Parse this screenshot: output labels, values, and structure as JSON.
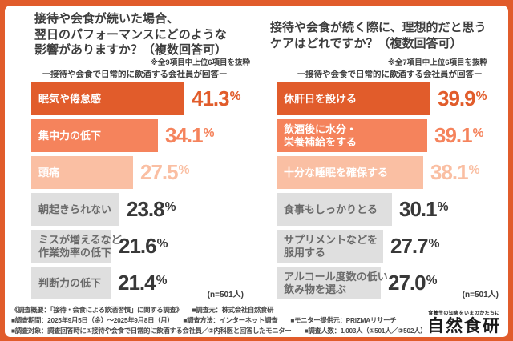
{
  "colors": {
    "frame_orange": "#E15C2B",
    "bar_dark": "#E15C2B",
    "bar_mid": "#F5835C",
    "bar_light": "#FABFA3",
    "bar_gray": "#DFDFDF",
    "text_dark": "#3D3D3D",
    "footer_text": "#4A4A4A"
  },
  "charts": [
    {
      "title": "接待や会食が続いた場合、\n翌日のパフォーマンスにどのような\n影響がありますか？（複数回答可）",
      "note": "※全9項目中上位6項目を抜粋",
      "subtitle": "ー接待や会食で日常的に飲酒する会社員が回答ー",
      "sample": "(n=501人)",
      "rows": [
        {
          "label": "眠気や倦怠感",
          "value": 41.3,
          "display": "41.3%",
          "tier": "dark"
        },
        {
          "label": "集中力の低下",
          "value": 34.1,
          "display": "34.1%",
          "tier": "mid"
        },
        {
          "label": "頭痛",
          "value": 27.5,
          "display": "27.5%",
          "tier": "light"
        },
        {
          "label": "朝起きられない",
          "value": 23.8,
          "display": "23.8%",
          "tier": "gray"
        },
        {
          "label": "ミスが増えるなど\n作業効率の低下",
          "value": 21.6,
          "display": "21.6%",
          "tier": "gray"
        },
        {
          "label": "判断力の低下",
          "value": 21.4,
          "display": "21.4%",
          "tier": "gray"
        }
      ]
    },
    {
      "title": "接待や会食が続く際に、理想的だと思う\nケアはどれですか？（複数回答可）",
      "note": "※全7項目中上位6項目を抜粋",
      "subtitle": "ー接待や会食で日常的に飲酒する会社員が回答ー",
      "sample": "(n=501人)",
      "rows": [
        {
          "label": "休肝日を設ける",
          "value": 39.9,
          "display": "39.9%",
          "tier": "dark"
        },
        {
          "label": "飲酒後に水分・\n栄養補給をする",
          "value": 39.1,
          "display": "39.1%",
          "tier": "mid"
        },
        {
          "label": "十分な睡眠を確保する",
          "value": 38.1,
          "display": "38.1%",
          "tier": "light"
        },
        {
          "label": "食事もしっかりとる",
          "value": 30.1,
          "display": "30.1%",
          "tier": "gray"
        },
        {
          "label": "サプリメントなどを\n服用する",
          "value": 27.7,
          "display": "27.7%",
          "tier": "gray"
        },
        {
          "label": "アルコール度数の低い\n飲み物を選ぶ",
          "value": 27.0,
          "display": "27.0%",
          "tier": "gray"
        }
      ]
    }
  ],
  "chart_data": [
    {
      "type": "bar",
      "orientation": "horizontal",
      "title": "接待や会食が続いた場合、翌日のパフォーマンスにどのような影響がありますか？（複数回答可）",
      "note": "※全9項目中上位6項目を抜粋",
      "subtitle": "ー接待や会食で日常的に飲酒する会社員が回答ー",
      "sample_size_label": "(n=501人)",
      "categories": [
        "眠気や倦怠感",
        "集中力の低下",
        "頭痛",
        "朝起きられない",
        "ミスが増えるなど作業効率の低下",
        "判断力の低下"
      ],
      "values": [
        41.3,
        34.1,
        27.5,
        23.8,
        21.6,
        21.4
      ],
      "unit": "%",
      "xlim": [
        0,
        45
      ],
      "grid": false,
      "bar_colors": [
        "#E15C2B",
        "#F5835C",
        "#FABFA3",
        "#DFDFDF",
        "#DFDFDF",
        "#DFDFDF"
      ]
    },
    {
      "type": "bar",
      "orientation": "horizontal",
      "title": "接待や会食が続く際に、理想的だと思うケアはどれですか？（複数回答可）",
      "note": "※全7項目中上位6項目を抜粋",
      "subtitle": "ー接待や会食で日常的に飲酒する会社員が回答ー",
      "sample_size_label": "(n=501人)",
      "categories": [
        "休肝日を設ける",
        "飲酒後に水分・栄養補給をする",
        "十分な睡眠を確保する",
        "食事もしっかりとる",
        "サプリメントなどを服用する",
        "アルコール度数の低い飲み物を選ぶ"
      ],
      "values": [
        39.9,
        39.1,
        38.1,
        30.1,
        27.7,
        27.0
      ],
      "unit": "%",
      "xlim": [
        0,
        45
      ],
      "grid": false,
      "bar_colors": [
        "#E15C2B",
        "#F5835C",
        "#FABFA3",
        "#DFDFDF",
        "#DFDFDF",
        "#DFDFDF"
      ]
    }
  ],
  "footer": {
    "lines": [
      "《調査概要：「接待・会食による飲酒習慣」に関する調査》　　■調査元：株式会社自然食研",
      "■調査期間：2025年9月5日（金）～2025年9月8日（月）　　■調査方法：インターネット調査　　■モニター提供元：PRIZMAリサーチ",
      "■調査対象：調査回答時に①接待や会食で日常的に飲酒する会社員／②内科医と回答したモニター　　■調査人数：1,003人（①501人／②502人）"
    ],
    "logo": {
      "tagline": "食養生の知恵をいまのかたちに",
      "name": "自然食研"
    }
  }
}
